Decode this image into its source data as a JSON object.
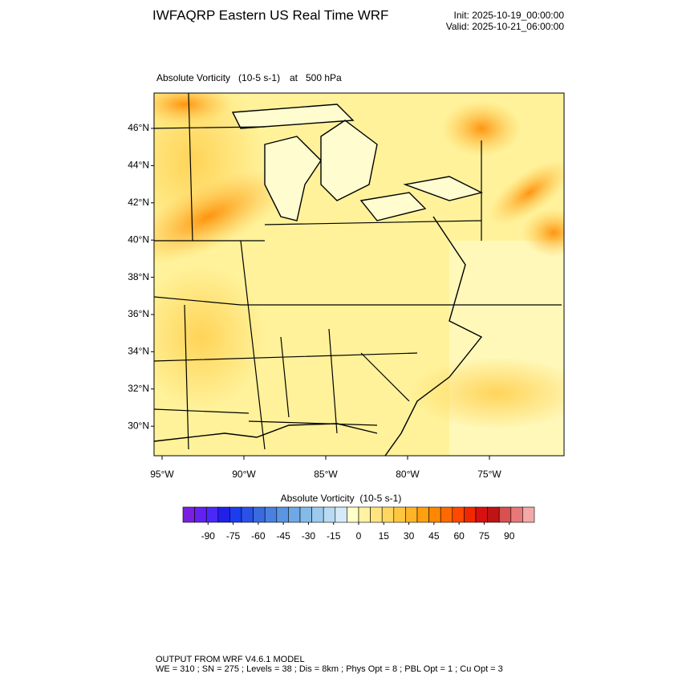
{
  "header": {
    "title": "IWFAQRP Eastern US Real Time WRF",
    "init": "Init: 2025-10-19_00:00:00",
    "valid": "Valid: 2025-10-21_06:00:00"
  },
  "map": {
    "field": "Absolute Vorticity   (10-5 s-1)",
    "level": "at   500 hPa",
    "lat_ticks": [
      {
        "value": 46,
        "label": "46°N"
      },
      {
        "value": 44,
        "label": "44°N"
      },
      {
        "value": 42,
        "label": "42°N"
      },
      {
        "value": 40,
        "label": "40°N"
      },
      {
        "value": 38,
        "label": "38°N"
      },
      {
        "value": 36,
        "label": "36°N"
      },
      {
        "value": 34,
        "label": "34°N"
      },
      {
        "value": 32,
        "label": "32°N"
      },
      {
        "value": 30,
        "label": "30°N"
      }
    ],
    "lon_ticks": [
      {
        "value": -95,
        "label": "95°W"
      },
      {
        "value": -90,
        "label": "90°W"
      },
      {
        "value": -85,
        "label": "85°W"
      },
      {
        "value": -80,
        "label": "80°W"
      },
      {
        "value": -75,
        "label": "75°W"
      }
    ]
  },
  "colorbar": {
    "title": "Absolute Vorticity  (10-5 s-1)",
    "range": [
      -105,
      105
    ],
    "ticks": [
      -90,
      -75,
      -60,
      -45,
      -30,
      -15,
      0,
      15,
      30,
      45,
      60,
      75,
      90
    ],
    "colors": [
      "#7a1fe0",
      "#6420f0",
      "#4a28f8",
      "#2020e8",
      "#1c3cf0",
      "#2a52e8",
      "#3a6ae0",
      "#4a80e0",
      "#5a94e2",
      "#6ea8e6",
      "#84bae8",
      "#9ccaee",
      "#b8daf2",
      "#d4eaf8",
      "#ffffc8",
      "#fff2a0",
      "#ffe480",
      "#ffd660",
      "#ffc640",
      "#ffb428",
      "#ffa010",
      "#ff8800",
      "#ff6a00",
      "#ff4800",
      "#f02800",
      "#d81010",
      "#c01414",
      "#d85050",
      "#e87878",
      "#f4a8a8"
    ]
  },
  "footer": {
    "line1": "OUTPUT FROM WRF V4.6.1 MODEL",
    "line2": "WE = 310 ; SN = 275 ; Levels = 38 ; Dis = 8km ; Phys Opt = 8 ; PBL Opt = 1 ; Cu Opt = 3"
  }
}
